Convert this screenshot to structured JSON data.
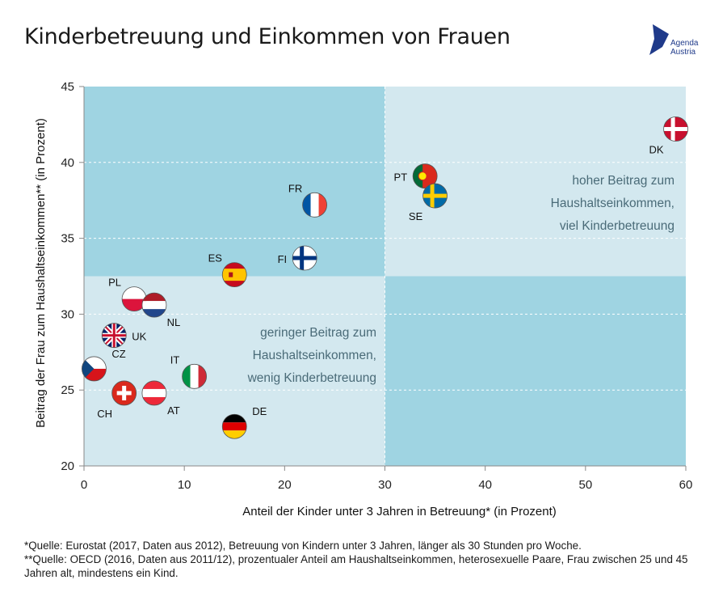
{
  "title": "Kinderbetreuung und Einkommen von Frauen",
  "logo": {
    "line1": "Agenda",
    "line2": "Austria",
    "color": "#1f3a8a"
  },
  "colors": {
    "quadrant_dark": "#9fd4e2",
    "quadrant_light": "#d3e8ef",
    "annotation_text": "#4a6b78",
    "axis": "#888888"
  },
  "chart_data": {
    "type": "scatter",
    "title": "Kinderbetreuung und Einkommen von Frauen",
    "xlabel": "Anteil der Kinder unter 3 Jahren in Betreuung* (in Prozent)",
    "ylabel": "Beitrag der Frau zum Haushaltseinkommen** (in Prozent)",
    "xlim": [
      0,
      60
    ],
    "ylim": [
      20,
      45
    ],
    "xticks": [
      0,
      10,
      20,
      30,
      40,
      50,
      60
    ],
    "yticks": [
      20,
      25,
      30,
      35,
      40,
      45
    ],
    "grid": true,
    "quadrant_split": {
      "x": 30,
      "y": 32.5
    },
    "points": [
      {
        "label": "DK",
        "flag": "dk",
        "x": 59,
        "y": 42.2,
        "label_pos": "below-left"
      },
      {
        "label": "PT",
        "flag": "pt",
        "x": 34,
        "y": 39.1,
        "label_pos": "left"
      },
      {
        "label": "SE",
        "flag": "se",
        "x": 35,
        "y": 37.8,
        "label_pos": "below-left"
      },
      {
        "label": "FR",
        "flag": "fr",
        "x": 23,
        "y": 37.2,
        "label_pos": "above-left"
      },
      {
        "label": "FI",
        "flag": "fi",
        "x": 22,
        "y": 33.7,
        "label_pos": "left"
      },
      {
        "label": "ES",
        "flag": "es",
        "x": 15,
        "y": 32.6,
        "label_pos": "above-left"
      },
      {
        "label": "PL",
        "flag": "pl",
        "x": 5,
        "y": 31.0,
        "label_pos": "above-left"
      },
      {
        "label": "NL",
        "flag": "nl",
        "x": 7,
        "y": 30.6,
        "label_pos": "below-right"
      },
      {
        "label": "UK",
        "flag": "uk",
        "x": 3,
        "y": 28.6,
        "label_pos": "right"
      },
      {
        "label": "CZ",
        "flag": "cz",
        "x": 1,
        "y": 26.4,
        "label_pos": "above-right"
      },
      {
        "label": "IT",
        "flag": "it",
        "x": 11,
        "y": 25.9,
        "label_pos": "above-left"
      },
      {
        "label": "CH",
        "flag": "ch",
        "x": 4,
        "y": 24.8,
        "label_pos": "below-left"
      },
      {
        "label": "AT",
        "flag": "at",
        "x": 7,
        "y": 24.8,
        "label_pos": "below-right"
      },
      {
        "label": "DE",
        "flag": "de",
        "x": 15,
        "y": 22.6,
        "label_pos": "above-right"
      }
    ],
    "annotations": [
      {
        "quadrant": "top-right",
        "lines": [
          "hoher Beitrag zum",
          "Haushaltseinkommen,",
          "viel Kinderbetreuung"
        ]
      },
      {
        "quadrant": "bottom-left",
        "lines": [
          "geringer Beitrag zum",
          "Haushaltseinkommen,",
          "wenig Kinderbetreuung"
        ]
      }
    ]
  },
  "footnotes": [
    "*Quelle: Eurostat (2017, Daten aus 2012), Betreuung von Kindern unter 3 Jahren, länger als 30 Stunden pro Woche.",
    "**Quelle: OECD (2016, Daten aus 2011/12), prozentualer Anteil am Haushaltseinkommen, heterosexuelle Paare, Frau zwischen 25 und 45 Jahren alt, mindestens ein Kind."
  ]
}
